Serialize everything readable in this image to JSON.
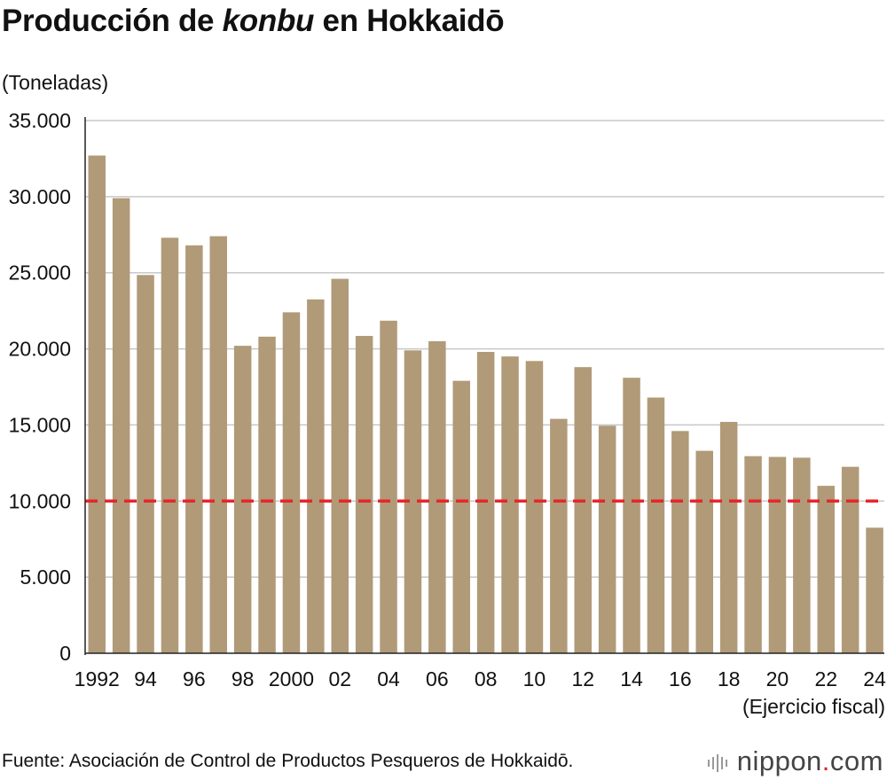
{
  "chart_data": {
    "type": "bar",
    "title_before": "Producción de ",
    "title_italic": "konbu",
    "title_after": " en Hokkaidō",
    "ylabel": "(Toneladas)",
    "xlabel": "(Ejercicio fiscal)",
    "ylim": [
      0,
      35000
    ],
    "yticks": [
      0,
      5000,
      10000,
      15000,
      20000,
      25000,
      30000,
      35000
    ],
    "ytick_labels": [
      "0",
      "5.000",
      "10.000",
      "15.000",
      "20.000",
      "25.000",
      "30.000",
      "35.000"
    ],
    "categories": [
      "1992",
      "1993",
      "1994",
      "1995",
      "1996",
      "1997",
      "1998",
      "1999",
      "2000",
      "2001",
      "2002",
      "2003",
      "2004",
      "2005",
      "2006",
      "2007",
      "2008",
      "2009",
      "2010",
      "2011",
      "2012",
      "2013",
      "2014",
      "2015",
      "2016",
      "2017",
      "2018",
      "2019",
      "2020",
      "2021",
      "2022",
      "2023",
      "2024"
    ],
    "tick_labels": [
      "1992",
      "",
      "94",
      "",
      "96",
      "",
      "98",
      "",
      "2000",
      "",
      "02",
      "",
      "04",
      "",
      "06",
      "",
      "08",
      "",
      "10",
      "",
      "12",
      "",
      "14",
      "",
      "16",
      "",
      "18",
      "",
      "20",
      "",
      "22",
      "",
      "24"
    ],
    "values": [
      32700,
      29900,
      24850,
      27300,
      26800,
      27400,
      20200,
      20800,
      22400,
      23250,
      24600,
      20850,
      21850,
      19900,
      20500,
      17900,
      19800,
      19500,
      19200,
      15400,
      18800,
      14950,
      18100,
      16800,
      14600,
      13300,
      15200,
      12950,
      12900,
      12850,
      11000,
      12250,
      8250
    ],
    "reference_line": 10000,
    "grid": true,
    "colors": {
      "bar": "#b09a78",
      "grid": "#c8c8c8",
      "reference": "#e8252b",
      "axis": "#222222"
    }
  },
  "source": "Fuente: Asociación de Control de Productos Pesqueros de Hokkaidō.",
  "brand": {
    "name": "nippon",
    "dot": ".",
    "suffix": "com"
  }
}
